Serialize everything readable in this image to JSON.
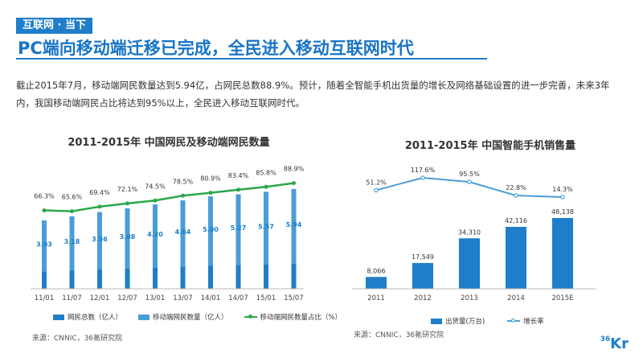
{
  "header": {
    "tag": "互联网 · 当下",
    "title": "PC端向移动端迁移已完成，全民进入移动互联网时代"
  },
  "intro": "截止2015年7月，移动端网民数量达到5.94亿，占网民总数88.9%。预计，随着全智能手机出货量的增长及网络基础设置的进一步完善，未来3年内，我国移动端网民占比将达到95%以上，全民进入移动互联网时代。",
  "logo": {
    "sup": "36",
    "main": "Kr"
  },
  "colors": {
    "blue": "#1f7ec9",
    "lightblue": "#4a9ed8",
    "green": "#2ba84a",
    "line": "#4a9ed8"
  },
  "chart_data": [
    {
      "type": "bar",
      "title": "2011-2015年 中国网民及移动端网民数量",
      "categories": [
        "11/01",
        "11/07",
        "12/01",
        "12/07",
        "13/01",
        "13/07",
        "14/01",
        "14/07",
        "15/01",
        "15/07"
      ],
      "series": [
        {
          "name": "网民总数（亿人）",
          "values": [
            4.57,
            4.85,
            5.13,
            5.38,
            5.64,
            5.91,
            6.18,
            6.32,
            6.49,
            6.68
          ]
        },
        {
          "name": "移动端网民数量（亿人）",
          "values": [
            3.03,
            3.18,
            3.56,
            3.88,
            4.2,
            4.64,
            5.0,
            5.27,
            5.57,
            5.94
          ]
        },
        {
          "name": "移动端网民数量占比（%）",
          "type": "line",
          "values": [
            66.3,
            65.6,
            69.4,
            72.1,
            74.5,
            78.5,
            80.9,
            83.4,
            85.8,
            88.9
          ]
        }
      ],
      "value_labels": [
        "3.03",
        "3.18",
        "3.56",
        "3.88",
        "4.20",
        "4.64",
        "5.00",
        "5.27",
        "5.57",
        "5.94"
      ],
      "pct_labels": [
        "66.3%",
        "65.6%",
        "69.4%",
        "72.1%",
        "74.5%",
        "78.5%",
        "80.9%",
        "83.4%",
        "85.8%",
        "88.9%"
      ],
      "ylim": [
        0,
        7
      ],
      "pct_range": [
        50,
        100
      ],
      "source": "来源：CNNIC，36氪研究院"
    },
    {
      "type": "bar",
      "title": "2011-2015年 中国智能手机销售量",
      "categories": [
        "2011",
        "2012",
        "2013",
        "2014",
        "2015E"
      ],
      "series": [
        {
          "name": "出货量(万台)",
          "values": [
            8066,
            17549,
            34310,
            42116,
            48138
          ]
        },
        {
          "name": "增长率",
          "type": "line",
          "values": [
            51.2,
            117.6,
            95.5,
            22.8,
            14.3
          ]
        }
      ],
      "value_labels": [
        "8,066",
        "17,549",
        "34,310",
        "42,116",
        "48,138"
      ],
      "pct_labels": [
        "51.2%",
        "117.6%",
        "95.5%",
        "22.8%",
        "14.3%"
      ],
      "ylim": [
        0,
        48138
      ],
      "source": "来源：CNNIC，36氪研究院"
    }
  ]
}
